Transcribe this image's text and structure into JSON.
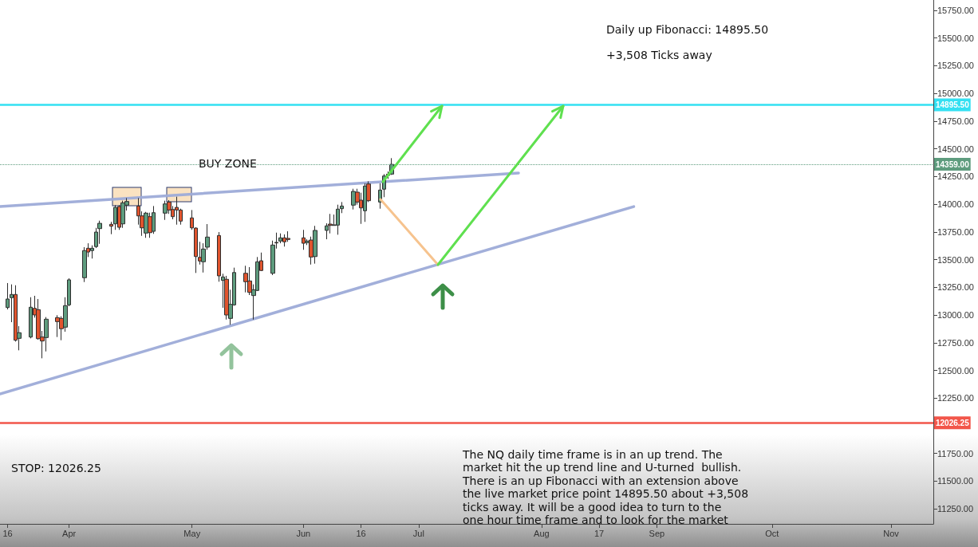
{
  "chart_data": {
    "type": "candlestick",
    "series": [
      {
        "x": [
          "--03-16",
          "--03-17",
          "--03-18",
          "--03-19",
          "--03-22",
          "--03-23",
          "--03-24",
          "--03-25",
          "--03-26",
          "--03-29",
          "--03-30",
          "--03-31",
          "--04-01",
          "--04-05",
          "--04-06",
          "--04-07",
          "--04-08",
          "--04-09",
          "--04-12",
          "--04-13",
          "--04-14",
          "--04-15",
          "--04-16",
          "--04-19",
          "--04-20",
          "--04-21",
          "--04-22",
          "--04-23",
          "--04-26",
          "--04-27",
          "--04-28",
          "--04-29",
          "--04-30",
          "--05-03",
          "--05-04",
          "--05-05",
          "--05-06",
          "--05-07",
          "--05-10",
          "--05-11",
          "--05-12",
          "--05-13",
          "--05-14",
          "--05-17",
          "--05-18",
          "--05-19",
          "--05-20",
          "--05-21",
          "--05-24",
          "--05-25",
          "--05-26",
          "--05-27",
          "--05-28",
          "--06-01",
          "--06-02",
          "--06-03",
          "--06-04",
          "--06-07",
          "--06-08",
          "--06-09",
          "--06-10",
          "--06-11",
          "--06-14",
          "--06-15",
          "--06-16",
          "--06-17",
          "--06-18",
          "--06-21",
          "--06-22",
          "--06-23",
          "--06-24"
        ],
        "ohlc": [
          [
            13067,
            13288,
            13050,
            13144
          ],
          [
            13156,
            13276,
            12935,
            13185
          ],
          [
            13185,
            13268,
            12760,
            12772
          ],
          [
            12789,
            12899,
            12681,
            12840
          ],
          [
            12801,
            13160,
            12789,
            13070
          ],
          [
            13060,
            13173,
            12976,
            13000
          ],
          [
            13048,
            13144,
            12777,
            12786
          ],
          [
            12801,
            12856,
            12609,
            12765
          ],
          [
            12796,
            12981,
            12671,
            12962
          ],
          [
            12976,
            12998,
            12801,
            12940
          ],
          [
            12969,
            12988,
            12772,
            12876
          ],
          [
            12890,
            13160,
            12849,
            13084
          ],
          [
            13091,
            13331,
            13079,
            13317
          ],
          [
            13336,
            13612,
            13297,
            13581
          ],
          [
            13602,
            13647,
            13523,
            13568
          ],
          [
            13581,
            13628,
            13509,
            13602
          ],
          [
            13617,
            13786,
            13604,
            13748
          ],
          [
            13779,
            13851,
            13642,
            13827
          ],
          [
            13818,
            13840,
            13729,
            13801
          ],
          [
            13822,
            13991,
            13768,
            13971
          ],
          [
            13978,
            13991,
            13768,
            13791
          ],
          [
            13822,
            14031,
            13786,
            14012
          ],
          [
            13991,
            14055,
            13942,
            14024
          ],
          [
            13983,
            14055,
            13815,
            13894
          ],
          [
            13894,
            13935,
            13714,
            13786
          ],
          [
            13739,
            13930,
            13696,
            13919
          ],
          [
            13887,
            13923,
            13696,
            13743
          ],
          [
            13755,
            13983,
            13732,
            13923
          ],
          [
            13919,
            14031,
            13858,
            14002
          ],
          [
            14019,
            14036,
            13912,
            13947
          ],
          [
            13952,
            13983,
            13863,
            13887
          ],
          [
            13971,
            14067,
            13815,
            13947
          ],
          [
            13947,
            13959,
            13815,
            13847
          ],
          [
            13876,
            13947,
            13768,
            13786
          ],
          [
            13784,
            13791,
            13379,
            13527
          ],
          [
            13520,
            13660,
            13455,
            13487
          ],
          [
            13480,
            13647,
            13383,
            13595
          ],
          [
            13612,
            13820,
            13588,
            13703
          ],
          [
            13717,
            13748,
            13300,
            13353
          ],
          [
            13312,
            13372,
            13065,
            13343
          ],
          [
            13322,
            13353,
            12959,
            13000
          ],
          [
            12969,
            13228,
            12912,
            13096
          ],
          [
            13091,
            13427,
            13084,
            13383
          ],
          [
            13376,
            13444,
            13204,
            13300
          ],
          [
            13307,
            13432,
            13180,
            13204
          ],
          [
            13175,
            13276,
            12959,
            13228
          ],
          [
            13221,
            13523,
            13216,
            13480
          ],
          [
            13489,
            13563,
            13396,
            13401
          ],
          [
            13376,
            13671,
            13360,
            13631
          ],
          [
            13655,
            13743,
            13599,
            13650
          ],
          [
            13667,
            13736,
            13647,
            13696
          ],
          [
            13696,
            13727,
            13617,
            13660
          ],
          [
            13691,
            13755,
            13660,
            13681
          ],
          [
            13696,
            13768,
            13588,
            13647
          ],
          [
            13653,
            13683,
            13631,
            13667
          ],
          [
            13676,
            13707,
            13455,
            13523
          ],
          [
            13527,
            13804,
            13463,
            13763
          ],
          [
            13763,
            13827,
            13683,
            13804
          ],
          [
            13820,
            13912,
            13736,
            13808
          ],
          [
            13808,
            13906,
            13806,
            13813
          ],
          [
            13811,
            13995,
            13724,
            13955
          ],
          [
            13959,
            14019,
            13919,
            13983
          ],
          [
            13991,
            14139,
            13952,
            14115
          ],
          [
            14108,
            14139,
            13995,
            14019
          ],
          [
            14036,
            14103,
            13822,
            13966
          ],
          [
            13940,
            14187,
            13840,
            14163
          ],
          [
            14182,
            14206,
            14019,
            14031
          ],
          [
            14019,
            14187,
            13959,
            14127
          ],
          [
            14135,
            14271,
            14063,
            14254
          ],
          [
            14271,
            14295,
            14228,
            14259
          ],
          [
            14271,
            14415,
            14264,
            14359
          ]
        ],
        "colors": [
          "#5e9c7e",
          "#5e9c7e",
          "#e0542e",
          "#5e9c7e",
          "#5e9c7e",
          "#e0542e",
          "#e0542e",
          "#e0542e",
          "#5e9c7e",
          "#e0542e",
          "#e0542e",
          "#5e9c7e",
          "#5e9c7e",
          "#5e9c7e",
          "#e0542e",
          "#5e9c7e",
          "#5e9c7e",
          "#5e9c7e",
          "#e0542e",
          "#5e9c7e",
          "#e0542e",
          "#5e9c7e",
          "#5e9c7e",
          "#e0542e",
          "#e0542e",
          "#5e9c7e",
          "#e0542e",
          "#5e9c7e",
          "#5e9c7e",
          "#e0542e",
          "#e0542e",
          "#e0542e",
          "#e0542e",
          "#e0542e",
          "#e0542e",
          "#e0542e",
          "#5e9c7e",
          "#5e9c7e",
          "#e0542e",
          "#5e9c7e",
          "#e0542e",
          "#5e9c7e",
          "#5e9c7e",
          "#e0542e",
          "#e0542e",
          "#5e9c7e",
          "#5e9c7e",
          "#e0542e",
          "#5e9c7e",
          "#e0542e",
          "#5e9c7e",
          "#e0542e",
          "#e0542e",
          "#e0542e",
          "#5e9c7e",
          "#e0542e",
          "#5e9c7e",
          "#5e9c7e",
          "#e0542e",
          "#5e9c7e",
          "#5e9c7e",
          "#5e9c7e",
          "#5e9c7e",
          "#e0542e",
          "#e0542e",
          "#5e9c7e",
          "#e0542e",
          "#5e9c7e",
          "#5e9c7e",
          "#e0542e",
          "#5e9c7e"
        ]
      },
      {
        "type": "line",
        "x": [
          "--03-14",
          "--07-27"
        ],
        "values": [
          13978,
          14281
        ],
        "color": "#9dabd8"
      },
      {
        "type": "line",
        "x": [
          "--03-14",
          "--08-26"
        ],
        "values": [
          12288,
          13978
        ],
        "color": "#9dabd8"
      }
    ],
    "xlim": [
      "--03-14",
      "--11-12"
    ],
    "xticks": [
      {
        "value": "--03-16",
        "label": "16"
      },
      {
        "value": "--04-01",
        "label": "Apr"
      },
      {
        "value": "--05-03",
        "label": "May"
      },
      {
        "value": "--06-01",
        "label": "Jun"
      },
      {
        "value": "--06-16",
        "label": "16"
      },
      {
        "value": "--07-01",
        "label": "Jul"
      },
      {
        "value": "--08-02",
        "label": "Aug"
      },
      {
        "value": "--08-17",
        "label": "17"
      },
      {
        "value": "--09-01",
        "label": "Sep"
      },
      {
        "value": "--10-01",
        "label": "Oct"
      },
      {
        "value": "--11-01",
        "label": "Nov"
      }
    ],
    "ylim": [
      11115,
      15842
    ],
    "yticks": [
      {
        "value": 11250,
        "label": "11250.00"
      },
      {
        "value": 11500,
        "label": "11500.00"
      },
      {
        "value": 11750,
        "label": "11750.00"
      },
      {
        "value": 12000,
        "label": null
      },
      {
        "value": 12250,
        "label": "12250.00"
      },
      {
        "value": 12500,
        "label": "12500.00"
      },
      {
        "value": 12750,
        "label": "12750.00"
      },
      {
        "value": 13000,
        "label": "13000.00"
      },
      {
        "value": 13250,
        "label": "13250.00"
      },
      {
        "value": 13500,
        "label": "13500.00"
      },
      {
        "value": 13750,
        "label": "13750.00"
      },
      {
        "value": 14000,
        "label": "14000.00"
      },
      {
        "value": 14250,
        "label": "14250.00"
      },
      {
        "value": 14500,
        "label": "14500.00"
      },
      {
        "value": 14750,
        "label": "14750.00"
      },
      {
        "value": 15000,
        "label": "15000.00"
      },
      {
        "value": 15250,
        "label": "15250.00"
      },
      {
        "value": 15500,
        "label": "15500.00"
      },
      {
        "value": 15750,
        "label": "15750.00"
      }
    ],
    "ref_lines": [
      {
        "axis": "y",
        "value": 14895.5,
        "label": "14895.50",
        "color": "#33e0f2",
        "line_style": "solid"
      },
      {
        "axis": "y",
        "value": 14359,
        "label": "14359.00",
        "color": "#5e9c7e",
        "line_style": "dotted"
      },
      {
        "axis": "y",
        "value": 12026.25,
        "label": "12026.25",
        "color": "#f2564a",
        "line_style": "solid"
      }
    ],
    "annotations": [
      "Daily up Fibonacci: 14895.50",
      "+3,508 Ticks away",
      "BUY ZONE",
      "STOP: 12026.25",
      "The NQ daily time frame is in an up trend. The\nmarket hit the up trend line and U-turned  bullish.\nThere is an up Fibonacci with an extension above\nthe live market price point 14895.50 about +3,508\nticks away. It will be a good idea to turn to the\none hour time frame and to look for the market"
    ],
    "grid": false
  }
}
